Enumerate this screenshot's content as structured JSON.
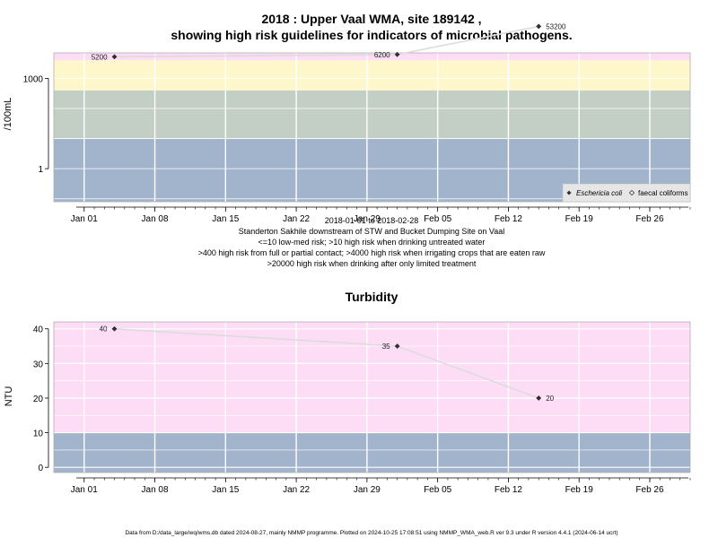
{
  "chart_data": [
    {
      "type": "line",
      "title": "2018 : Upper Vaal WMA, site 189142 ,",
      "subtitle": "showing high risk guidelines for indicators of microbial pathogens.",
      "ylabel": "/100mL",
      "ylog": true,
      "ylim": [
        0.08,
        7000
      ],
      "yticks": [
        1,
        1000
      ],
      "ytick_labels": [
        "1",
        "1000"
      ],
      "xlim": [
        "2017-12-29",
        "2018-03-02"
      ],
      "xticks": [
        "2018-01-01",
        "2018-01-08",
        "2018-01-15",
        "2018-01-22",
        "2018-01-29",
        "2018-02-05",
        "2018-02-12",
        "2018-02-19",
        "2018-02-26"
      ],
      "xtick_labels": [
        "Jan 01",
        "Jan 08",
        "Jan 15",
        "Jan 22",
        "Jan 29",
        "Feb 05",
        "Feb 12",
        "Feb 19",
        "Feb 26"
      ],
      "bands": [
        {
          "from": 0.08,
          "to": 10,
          "color": "#a2b4cc"
        },
        {
          "from": 10,
          "to": 400,
          "color": "#c3cfc5"
        },
        {
          "from": 400,
          "to": 4000,
          "color": "#fff7cc"
        },
        {
          "from": 4000,
          "to": 20000,
          "color": "#fddcf5"
        },
        {
          "from": 20000,
          "to": 7000,
          "color": "#fdb3c3"
        }
      ],
      "series": [
        {
          "name": "Eschericia coli",
          "x": [
            "2018-01-04",
            "2018-02-01",
            "2018-02-15"
          ],
          "y": [
            5200,
            6200,
            53200
          ],
          "labels": [
            "5200",
            "6200",
            "53200"
          ]
        }
      ],
      "legend": {
        "position": "bottom-right",
        "entries": [
          "Eschericia coli",
          "faecal coliforms"
        ]
      },
      "xlabel_lines": [
        "2018-01-01 to 2018-02-28",
        "Standerton Sakhile downstream of STW and Bucket Dumping Site on Vaal",
        "<=10 low-med risk; >10 high risk when drinking untreated water",
        ">400 high risk from full or partial contact; >4000 high risk when irrigating crops that are eaten raw",
        ">20000 high risk when drinking after only limited treatment"
      ]
    },
    {
      "type": "line",
      "title": "Turbidity",
      "ylabel": "NTU",
      "ylim": [
        -1.5,
        42
      ],
      "yticks": [
        0,
        10,
        20,
        30,
        40
      ],
      "ytick_labels": [
        "0",
        "10",
        "20",
        "30",
        "40"
      ],
      "xlim": [
        "2017-12-29",
        "2018-03-02"
      ],
      "xticks": [
        "2018-01-01",
        "2018-01-08",
        "2018-01-15",
        "2018-01-22",
        "2018-01-29",
        "2018-02-05",
        "2018-02-12",
        "2018-02-19",
        "2018-02-26"
      ],
      "xtick_labels": [
        "Jan 01",
        "Jan 08",
        "Jan 15",
        "Jan 22",
        "Jan 29",
        "Feb 05",
        "Feb 12",
        "Feb 19",
        "Feb 26"
      ],
      "bands": [
        {
          "from": -1.5,
          "to": 10,
          "color": "#a2b4cc"
        },
        {
          "from": 10,
          "to": 42,
          "color": "#fddcf5"
        }
      ],
      "series": [
        {
          "x": [
            "2018-01-04",
            "2018-02-01",
            "2018-02-15"
          ],
          "y": [
            40,
            35,
            20
          ],
          "labels": [
            "40",
            "35",
            "20"
          ]
        }
      ]
    }
  ],
  "footer": "Data from D:/data_large/wq/wms.db dated 2024-08-27, mainly NMMP programme. Plotted on 2024-10-25 17:08:51 using NMMP_WMA_web.R ver 9.3 under R version 4.4.1 (2024-06-14 ucrt)"
}
